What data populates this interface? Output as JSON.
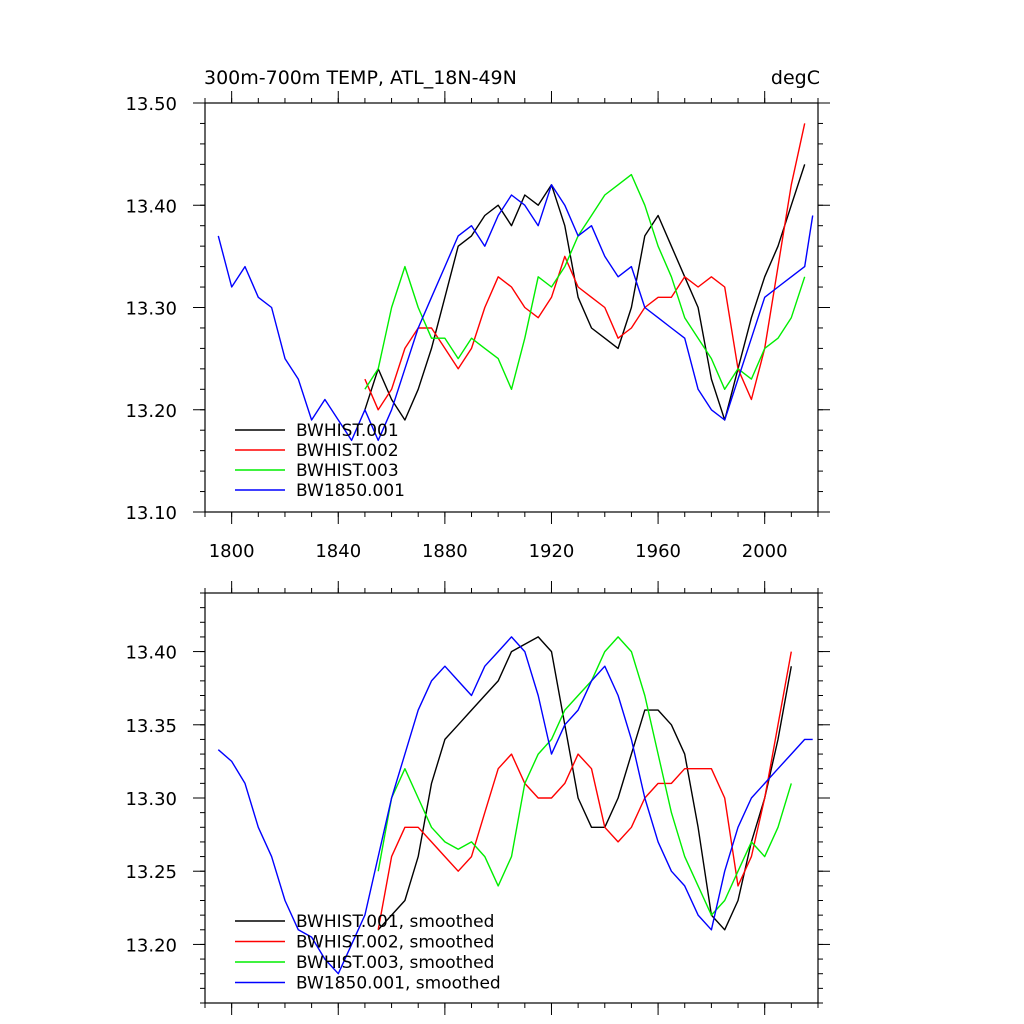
{
  "chart_data": [
    {
      "type": "line",
      "title": "300m-700m TEMP, ATL_18N-49N",
      "units": "degC",
      "xlim": [
        1790,
        2020
      ],
      "ylim": [
        13.1,
        13.5
      ],
      "x_ticks": [
        1800,
        1840,
        1880,
        1920,
        1960,
        2000
      ],
      "x_tick_labels": [
        "1800",
        "1840",
        "1880",
        "1920",
        "1960",
        "2000"
      ],
      "y_ticks": [
        13.1,
        13.2,
        13.3,
        13.4,
        13.5
      ],
      "y_tick_labels": [
        "13.10",
        "13.20",
        "13.30",
        "13.40",
        "13.50"
      ],
      "legend_position": "bottom-left",
      "series": [
        {
          "name": "BWHIST.001",
          "color": "#000000",
          "x": [
            1850,
            1855,
            1860,
            1865,
            1870,
            1875,
            1880,
            1885,
            1890,
            1895,
            1900,
            1905,
            1910,
            1915,
            1920,
            1925,
            1930,
            1935,
            1940,
            1945,
            1950,
            1955,
            1960,
            1965,
            1970,
            1975,
            1980,
            1985,
            1990,
            1995,
            2000,
            2005,
            2010,
            2015
          ],
          "y": [
            13.2,
            13.24,
            13.21,
            13.19,
            13.22,
            13.26,
            13.31,
            13.36,
            13.37,
            13.39,
            13.4,
            13.38,
            13.41,
            13.4,
            13.42,
            13.38,
            13.31,
            13.28,
            13.27,
            13.26,
            13.3,
            13.37,
            13.39,
            13.36,
            13.33,
            13.3,
            13.23,
            13.19,
            13.24,
            13.29,
            13.33,
            13.36,
            13.4,
            13.44
          ]
        },
        {
          "name": "BWHIST.002",
          "color": "#ff0000",
          "x": [
            1850,
            1855,
            1860,
            1865,
            1870,
            1875,
            1880,
            1885,
            1890,
            1895,
            1900,
            1905,
            1910,
            1915,
            1920,
            1925,
            1930,
            1935,
            1940,
            1945,
            1950,
            1955,
            1960,
            1965,
            1970,
            1975,
            1980,
            1985,
            1990,
            1995,
            2000,
            2005,
            2010,
            2015
          ],
          "y": [
            13.23,
            13.2,
            13.22,
            13.26,
            13.28,
            13.28,
            13.26,
            13.24,
            13.26,
            13.3,
            13.33,
            13.32,
            13.3,
            13.29,
            13.31,
            13.35,
            13.32,
            13.31,
            13.3,
            13.27,
            13.28,
            13.3,
            13.31,
            13.31,
            13.33,
            13.32,
            13.33,
            13.32,
            13.24,
            13.21,
            13.26,
            13.34,
            13.42,
            13.48
          ]
        },
        {
          "name": "BWHIST.003",
          "color": "#00ee00",
          "x": [
            1850,
            1855,
            1860,
            1865,
            1870,
            1875,
            1880,
            1885,
            1890,
            1895,
            1900,
            1905,
            1910,
            1915,
            1920,
            1925,
            1930,
            1935,
            1940,
            1945,
            1950,
            1955,
            1960,
            1965,
            1970,
            1975,
            1980,
            1985,
            1990,
            1995,
            2000,
            2005,
            2010,
            2015
          ],
          "y": [
            13.22,
            13.24,
            13.3,
            13.34,
            13.3,
            13.27,
            13.27,
            13.25,
            13.27,
            13.26,
            13.25,
            13.22,
            13.27,
            13.33,
            13.32,
            13.34,
            13.37,
            13.39,
            13.41,
            13.42,
            13.43,
            13.4,
            13.36,
            13.33,
            13.29,
            13.27,
            13.25,
            13.22,
            13.24,
            13.23,
            13.26,
            13.27,
            13.29,
            13.33
          ]
        },
        {
          "name": "BW1850.001",
          "color": "#0000ff",
          "x": [
            1795,
            1800,
            1805,
            1810,
            1815,
            1820,
            1825,
            1830,
            1835,
            1840,
            1845,
            1850,
            1855,
            1860,
            1865,
            1870,
            1875,
            1880,
            1885,
            1890,
            1895,
            1900,
            1905,
            1910,
            1915,
            1920,
            1925,
            1930,
            1935,
            1940,
            1945,
            1950,
            1955,
            1960,
            1965,
            1970,
            1975,
            1980,
            1985,
            1990,
            1995,
            2000,
            2005,
            2010,
            2015,
            2018
          ],
          "y": [
            13.37,
            13.32,
            13.34,
            13.31,
            13.3,
            13.25,
            13.23,
            13.19,
            13.21,
            13.19,
            13.17,
            13.2,
            13.17,
            13.2,
            13.24,
            13.28,
            13.31,
            13.34,
            13.37,
            13.38,
            13.36,
            13.39,
            13.41,
            13.4,
            13.38,
            13.42,
            13.4,
            13.37,
            13.38,
            13.35,
            13.33,
            13.34,
            13.3,
            13.29,
            13.28,
            13.27,
            13.22,
            13.2,
            13.19,
            13.23,
            13.27,
            13.31,
            13.32,
            13.33,
            13.34,
            13.39
          ]
        }
      ]
    },
    {
      "type": "line",
      "title": "",
      "xlim": [
        1790,
        2020
      ],
      "ylim": [
        13.16,
        13.44
      ],
      "x_ticks": [
        1800,
        1840,
        1880,
        1920,
        1960,
        2000
      ],
      "x_tick_labels": [
        "",
        "",
        "",
        "",
        "",
        ""
      ],
      "y_ticks": [
        13.2,
        13.25,
        13.3,
        13.35,
        13.4
      ],
      "y_tick_labels": [
        "13.20",
        "13.25",
        "13.30",
        "13.35",
        "13.40"
      ],
      "legend_position": "bottom-left",
      "series": [
        {
          "name": "BWHIST.001, smoothed",
          "color": "#000000",
          "x": [
            1855,
            1860,
            1865,
            1870,
            1875,
            1880,
            1885,
            1890,
            1895,
            1900,
            1905,
            1910,
            1915,
            1920,
            1925,
            1930,
            1935,
            1940,
            1945,
            1950,
            1955,
            1960,
            1965,
            1970,
            1975,
            1980,
            1985,
            1990,
            1995,
            2000,
            2005,
            2010
          ],
          "y": [
            13.21,
            13.22,
            13.23,
            13.26,
            13.31,
            13.34,
            13.35,
            13.36,
            13.37,
            13.38,
            13.4,
            13.405,
            13.41,
            13.4,
            13.35,
            13.3,
            13.28,
            13.28,
            13.3,
            13.33,
            13.36,
            13.36,
            13.35,
            13.33,
            13.28,
            13.22,
            13.21,
            13.23,
            13.27,
            13.3,
            13.34,
            13.39
          ]
        },
        {
          "name": "BWHIST.002, smoothed",
          "color": "#ff0000",
          "x": [
            1855,
            1860,
            1865,
            1870,
            1875,
            1880,
            1885,
            1890,
            1895,
            1900,
            1905,
            1910,
            1915,
            1920,
            1925,
            1930,
            1935,
            1940,
            1945,
            1950,
            1955,
            1960,
            1965,
            1970,
            1975,
            1980,
            1985,
            1990,
            1995,
            2000,
            2005,
            2010
          ],
          "y": [
            13.21,
            13.26,
            13.28,
            13.28,
            13.27,
            13.26,
            13.25,
            13.26,
            13.29,
            13.32,
            13.33,
            13.31,
            13.3,
            13.3,
            13.31,
            13.33,
            13.32,
            13.28,
            13.27,
            13.28,
            13.3,
            13.31,
            13.31,
            13.32,
            13.32,
            13.32,
            13.3,
            13.24,
            13.26,
            13.3,
            13.35,
            13.4
          ]
        },
        {
          "name": "BWHIST.003, smoothed",
          "color": "#00ee00",
          "x": [
            1855,
            1860,
            1865,
            1870,
            1875,
            1880,
            1885,
            1890,
            1895,
            1900,
            1905,
            1910,
            1915,
            1920,
            1925,
            1930,
            1935,
            1940,
            1945,
            1950,
            1955,
            1960,
            1965,
            1970,
            1975,
            1980,
            1985,
            1990,
            1995,
            2000,
            2005,
            2010
          ],
          "y": [
            13.25,
            13.3,
            13.32,
            13.3,
            13.28,
            13.27,
            13.265,
            13.27,
            13.26,
            13.24,
            13.26,
            13.31,
            13.33,
            13.34,
            13.36,
            13.37,
            13.38,
            13.4,
            13.41,
            13.4,
            13.37,
            13.33,
            13.29,
            13.26,
            13.24,
            13.22,
            13.23,
            13.25,
            13.27,
            13.26,
            13.28,
            13.31
          ]
        },
        {
          "name": "BW1850.001, smoothed",
          "color": "#0000ff",
          "x": [
            1795,
            1800,
            1805,
            1810,
            1815,
            1820,
            1825,
            1830,
            1835,
            1840,
            1845,
            1850,
            1855,
            1860,
            1865,
            1870,
            1875,
            1880,
            1885,
            1890,
            1895,
            1900,
            1905,
            1910,
            1915,
            1920,
            1925,
            1930,
            1935,
            1940,
            1945,
            1950,
            1955,
            1960,
            1965,
            1970,
            1975,
            1980,
            1985,
            1990,
            1995,
            2000,
            2005,
            2010,
            2015,
            2018
          ],
          "y": [
            13.333,
            13.325,
            13.31,
            13.28,
            13.26,
            13.23,
            13.21,
            13.205,
            13.19,
            13.18,
            13.2,
            13.22,
            13.26,
            13.3,
            13.33,
            13.36,
            13.38,
            13.39,
            13.38,
            13.37,
            13.39,
            13.4,
            13.41,
            13.4,
            13.37,
            13.33,
            13.35,
            13.36,
            13.38,
            13.39,
            13.37,
            13.34,
            13.3,
            13.27,
            13.25,
            13.24,
            13.22,
            13.21,
            13.25,
            13.28,
            13.3,
            13.31,
            13.32,
            13.33,
            13.34,
            13.34
          ]
        }
      ]
    }
  ]
}
